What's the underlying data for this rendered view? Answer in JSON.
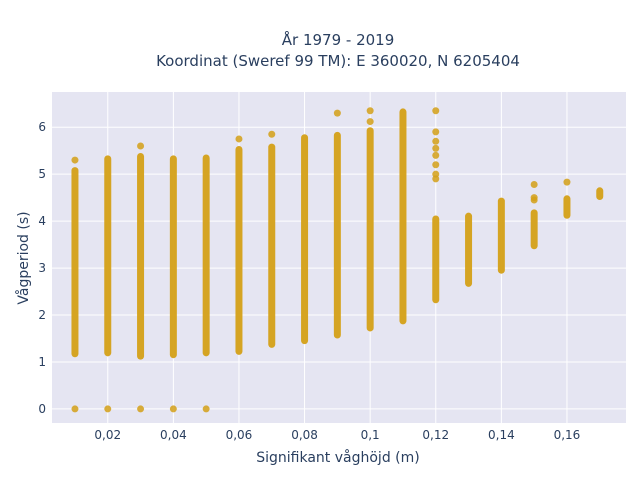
{
  "chart_data": {
    "type": "scatter",
    "title_line1": "År 1979 - 2019",
    "title_line2": "Koordinat (Sweref 99 TM): E 360020, N 6205404",
    "xlabel": "Signifikant våghöjd (m)",
    "ylabel": "Vågperiod (s)",
    "xlim": [
      0.003,
      0.178
    ],
    "ylim": [
      -0.3,
      6.75
    ],
    "xticks": [
      0.02,
      0.04,
      0.06,
      0.08,
      0.1,
      0.12,
      0.14,
      0.16
    ],
    "xtick_labels": [
      "0,02",
      "0,04",
      "0,06",
      "0,08",
      "0,1",
      "0,12",
      "0,14",
      "0,16"
    ],
    "yticks": [
      0,
      1,
      2,
      3,
      4,
      5,
      6
    ],
    "ytick_labels": [
      "0",
      "1",
      "2",
      "3",
      "4",
      "5",
      "6"
    ],
    "grid": true,
    "plot_bg": "#e5e5f2",
    "grid_color": "#ffffff",
    "marker_color": "#d4a017",
    "series": [
      {
        "columns": [
          {
            "x": 0.01,
            "y_min": 1.1,
            "y_max": 5.15,
            "extra": [
              5.3,
              0
            ]
          },
          {
            "x": 0.02,
            "y_min": 1.12,
            "y_max": 5.4,
            "extra": [
              0
            ]
          },
          {
            "x": 0.03,
            "y_min": 1.05,
            "y_max": 5.45,
            "extra": [
              5.6,
              0
            ]
          },
          {
            "x": 0.04,
            "y_min": 1.08,
            "y_max": 5.4,
            "extra": [
              0
            ]
          },
          {
            "x": 0.05,
            "y_min": 1.12,
            "y_max": 5.42,
            "extra": [
              0
            ]
          },
          {
            "x": 0.06,
            "y_min": 1.15,
            "y_max": 5.6,
            "extra": [
              5.75
            ]
          },
          {
            "x": 0.07,
            "y_min": 1.3,
            "y_max": 5.65,
            "extra": [
              5.85
            ]
          },
          {
            "x": 0.08,
            "y_min": 1.38,
            "y_max": 5.85,
            "extra": []
          },
          {
            "x": 0.09,
            "y_min": 1.5,
            "y_max": 5.9,
            "extra": [
              6.3
            ]
          },
          {
            "x": 0.1,
            "y_min": 1.65,
            "y_max": 6.0,
            "extra": [
              6.12,
              6.35
            ]
          },
          {
            "x": 0.11,
            "y_min": 1.8,
            "y_max": 6.4,
            "extra": []
          },
          {
            "x": 0.12,
            "y_min": 2.25,
            "y_max": 4.12,
            "extra": [
              4.9,
              5.0,
              5.2,
              5.4,
              5.55,
              5.7,
              5.9,
              6.35
            ]
          },
          {
            "x": 0.13,
            "y_min": 2.6,
            "y_max": 4.18,
            "extra": []
          },
          {
            "x": 0.14,
            "y_min": 2.88,
            "y_max": 4.5,
            "extra": []
          },
          {
            "x": 0.15,
            "y_min": 3.4,
            "y_max": 4.25,
            "extra": [
              4.45,
              4.5,
              4.78
            ]
          },
          {
            "x": 0.16,
            "y_min": 4.05,
            "y_max": 4.55,
            "extra": [
              4.83
            ]
          },
          {
            "x": 0.17,
            "y_min": 4.45,
            "y_max": 4.72,
            "extra": []
          }
        ]
      }
    ]
  }
}
